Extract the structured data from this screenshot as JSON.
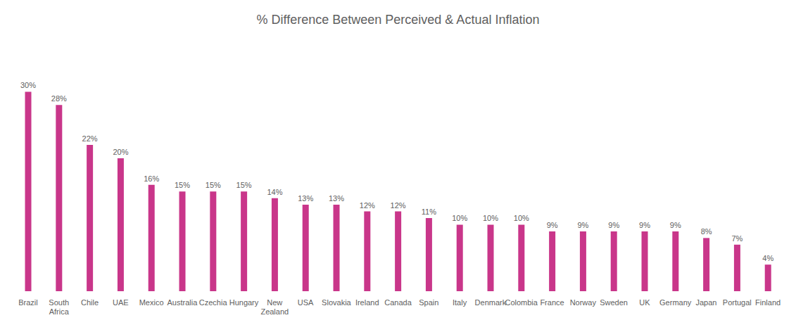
{
  "chart_data": {
    "type": "bar",
    "title": "% Difference Between Perceived & Actual Inflation",
    "categories": [
      "Brazil",
      "South\nAfrica",
      "Chile",
      "UAE",
      "Mexico",
      "Australia",
      "Czechia",
      "Hungary",
      "New\nZealand",
      "USA",
      "Slovakia",
      "Ireland",
      "Canada",
      "Spain",
      "Italy",
      "Denmark",
      "Colombia",
      "France",
      "Norway",
      "Sweden",
      "UK",
      "Germany",
      "Japan",
      "Portugal",
      "Finland"
    ],
    "values": [
      30,
      28,
      22,
      20,
      16,
      15,
      15,
      15,
      14,
      13,
      13,
      12,
      12,
      11,
      10,
      10,
      10,
      9,
      9,
      9,
      9,
      9,
      8,
      7,
      4
    ],
    "value_labels": [
      "30%",
      "28%",
      "22%",
      "20%",
      "16%",
      "15%",
      "15%",
      "15%",
      "14%",
      "13%",
      "13%",
      "12%",
      "12%",
      "11%",
      "10%",
      "10%",
      "10%",
      "9%",
      "9%",
      "9%",
      "9%",
      "9%",
      "8%",
      "7%",
      "4%"
    ],
    "data_labels": true,
    "color": "#C9368A",
    "ylim": [
      0,
      36.6
    ],
    "grid": false,
    "tick_labels": "x"
  }
}
